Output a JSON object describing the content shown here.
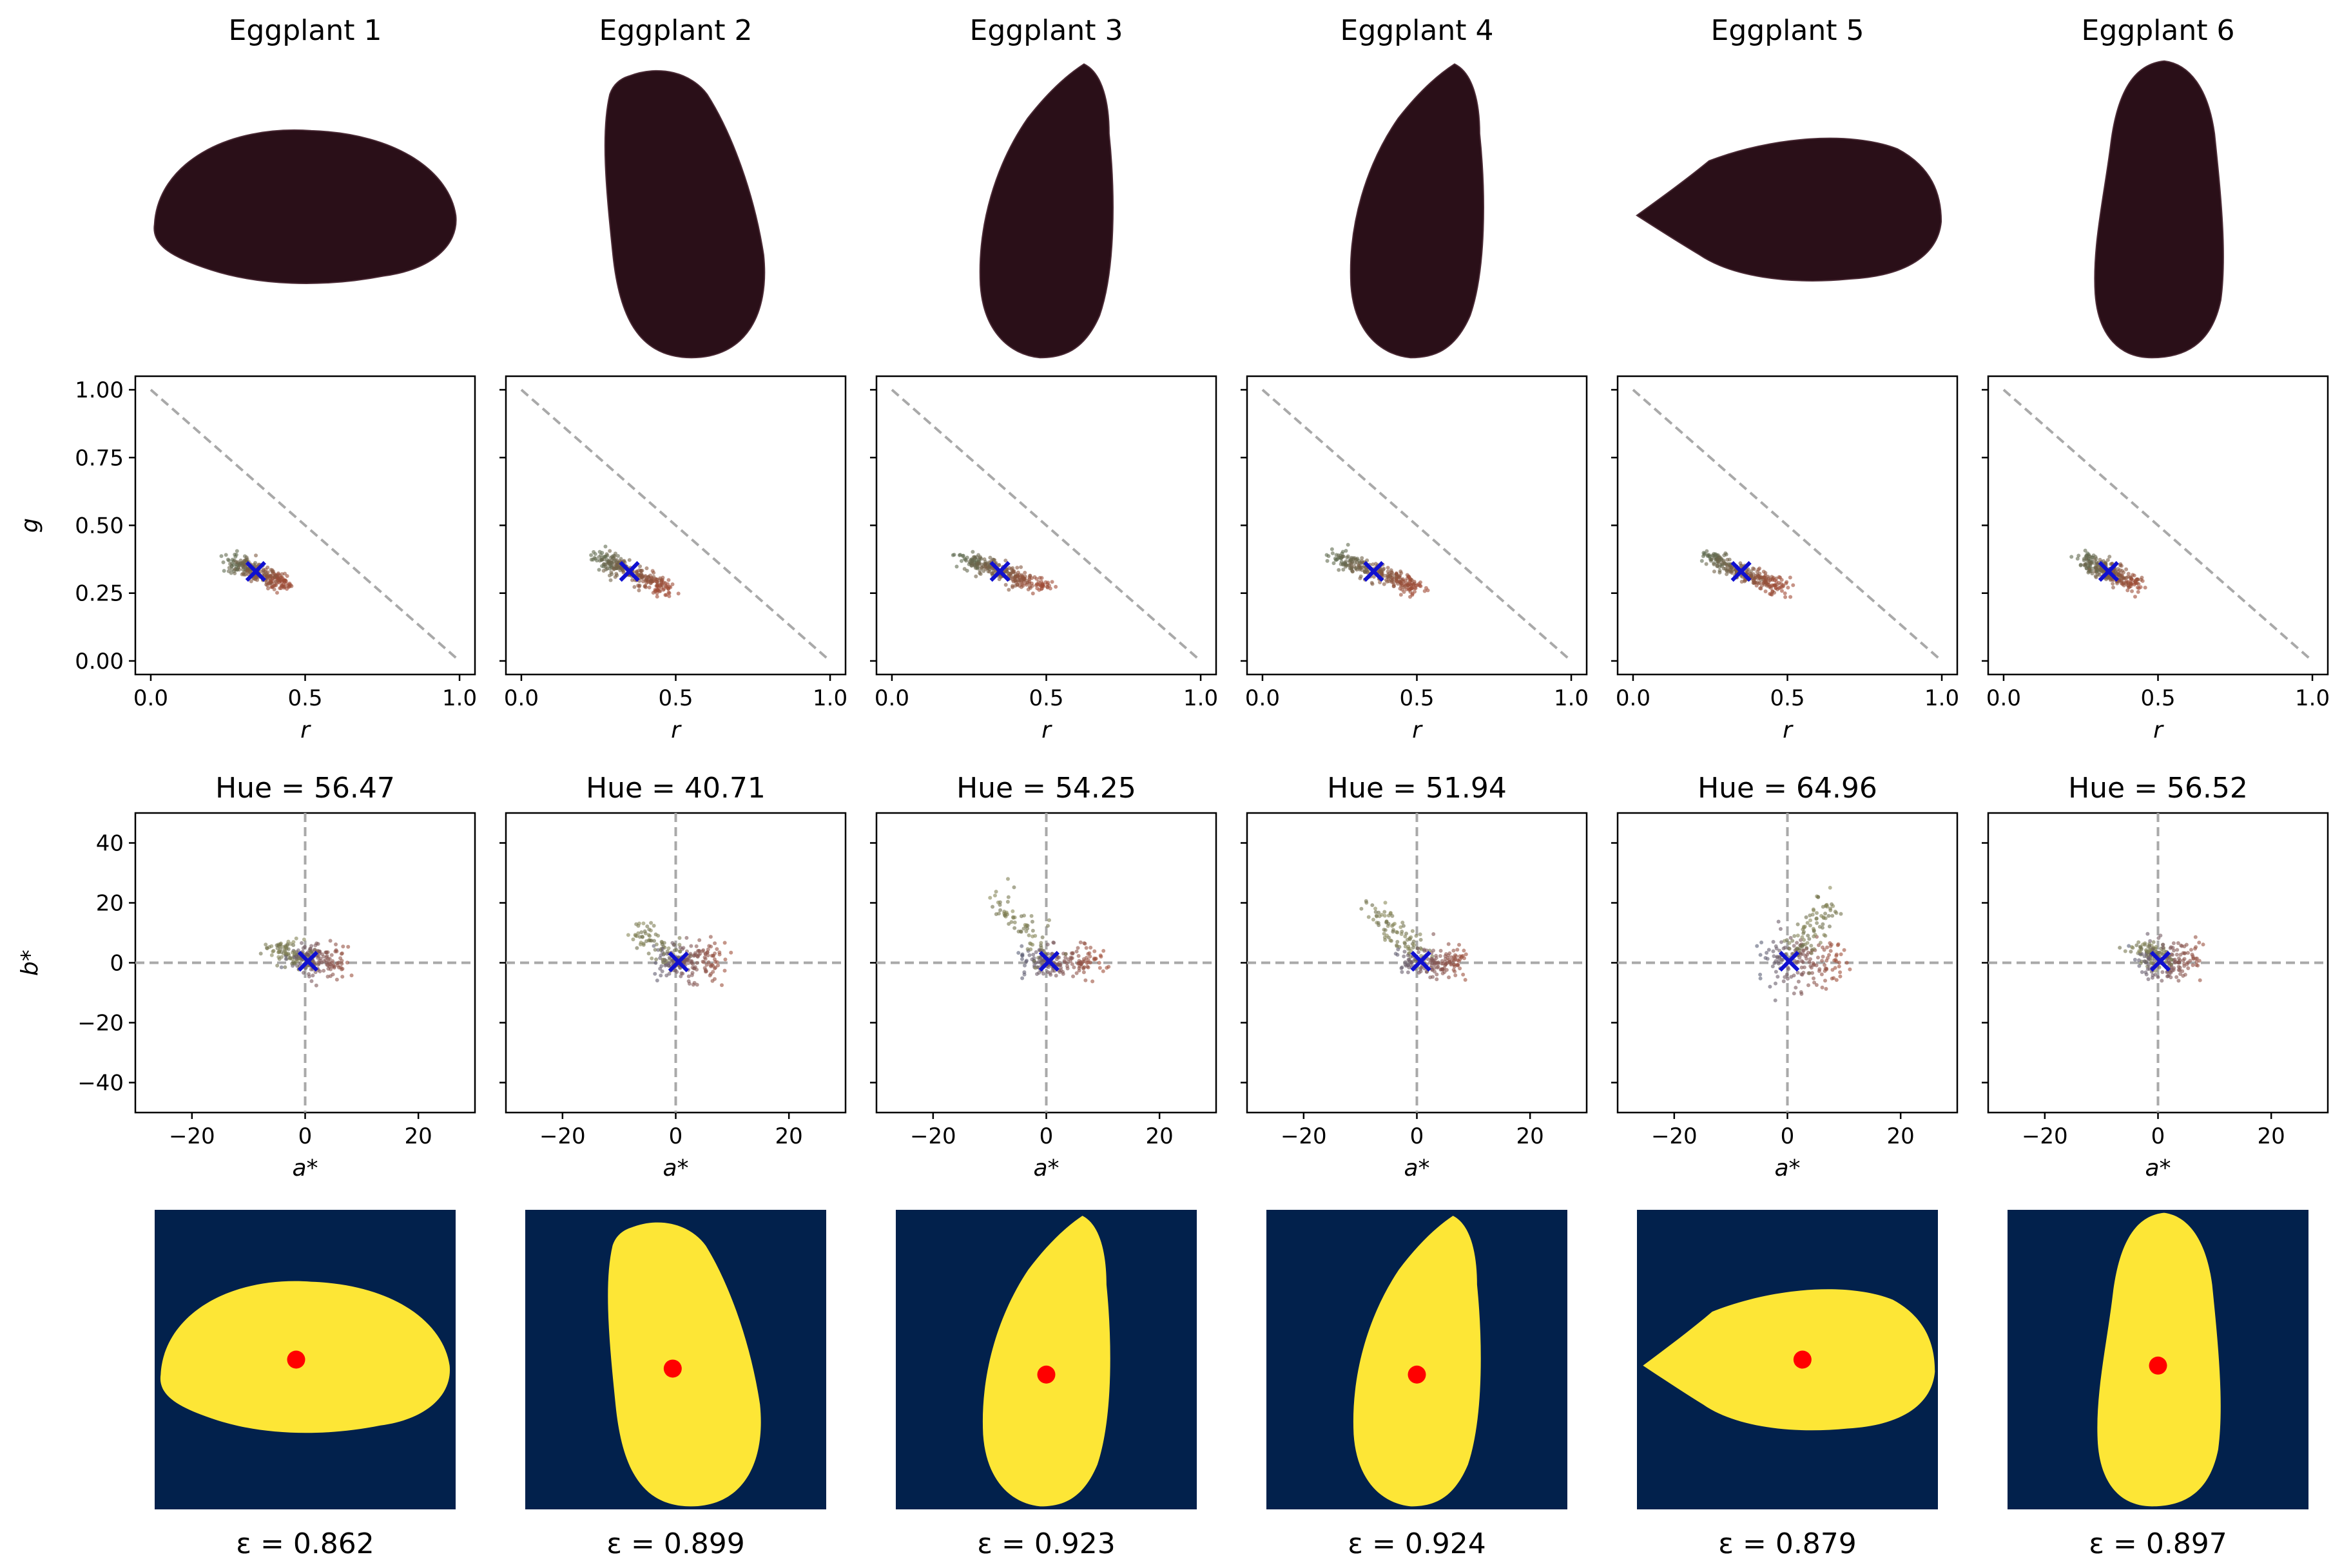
{
  "chart_data": {
    "type": "scatter",
    "columns": [
      {
        "title": "Eggplant 1",
        "hue": "Hue = 56.47",
        "ecc": "ε = 0.862",
        "rg_center": [
          0.34,
          0.33
        ],
        "rg_len": 0.09,
        "rg_slope": -0.85,
        "ab_center": [
          0.5,
          0.5
        ],
        "ab_spread": [
          6,
          4
        ],
        "ab_tail": [
          -5,
          5
        ],
        "shape": "egg-h",
        "shape_centroid": [
          0.47,
          0.5
        ]
      },
      {
        "title": "Eggplant 2",
        "hue": "Hue = 40.71",
        "ecc": "ε = 0.899",
        "rg_center": [
          0.35,
          0.33
        ],
        "rg_len": 0.11,
        "rg_slope": -0.9,
        "ab_center": [
          0.5,
          0.3
        ],
        "ab_spread": [
          7,
          4
        ],
        "ab_tail": [
          -8,
          12
        ],
        "shape": "curved-v",
        "shape_centroid": [
          0.49,
          0.53
        ]
      },
      {
        "title": "Eggplant 3",
        "hue": "Hue = 54.25",
        "ecc": "ε = 0.923",
        "rg_center": [
          0.35,
          0.33
        ],
        "rg_len": 0.13,
        "rg_slope": -0.7,
        "ab_center": [
          0.5,
          0.5
        ],
        "ab_spread": [
          9,
          3
        ],
        "ab_tail": [
          -9,
          22
        ],
        "shape": "drop-v",
        "shape_centroid": [
          0.5,
          0.55
        ]
      },
      {
        "title": "Eggplant 4",
        "hue": "Hue = 51.94",
        "ecc": "ε = 0.924",
        "rg_center": [
          0.36,
          0.33
        ],
        "rg_len": 0.13,
        "rg_slope": -0.7,
        "ab_center": [
          0.7,
          0.5
        ],
        "ab_spread": [
          8,
          3
        ],
        "ab_tail": [
          -8,
          18
        ],
        "shape": "drop-v",
        "shape_centroid": [
          0.5,
          0.55
        ]
      },
      {
        "title": "Eggplant 5",
        "hue": "Hue = 64.96",
        "ecc": "ε = 0.879",
        "rg_center": [
          0.35,
          0.33
        ],
        "rg_len": 0.12,
        "rg_slope": -0.8,
        "ab_center": [
          0.3,
          0.5
        ],
        "ab_spread": [
          9,
          6
        ],
        "ab_tail": [
          7,
          20
        ],
        "shape": "egg-h2",
        "shape_centroid": [
          0.55,
          0.5
        ]
      },
      {
        "title": "Eggplant 6",
        "hue": "Hue = 56.52",
        "ecc": "ε = 0.897",
        "rg_center": [
          0.34,
          0.33
        ],
        "rg_len": 0.09,
        "rg_slope": -0.85,
        "ab_center": [
          0.4,
          0.5
        ],
        "ab_spread": [
          6,
          4
        ],
        "ab_tail": [
          -3,
          5
        ],
        "shape": "bottle-v",
        "shape_centroid": [
          0.5,
          0.52
        ]
      }
    ],
    "rg_plot": {
      "xlabel": "r",
      "ylabel": "g",
      "xlim": [
        -0.05,
        1.05
      ],
      "ylim": [
        -0.05,
        1.05
      ],
      "xticks": [
        "0.0",
        "0.5",
        "1.0"
      ],
      "yticks": [
        "0.00",
        "0.25",
        "0.50",
        "0.75",
        "1.00"
      ]
    },
    "ab_plot": {
      "xlabel": "a*",
      "ylabel": "b*",
      "xlim": [
        -30,
        30
      ],
      "ylim": [
        -50,
        50
      ],
      "xticks": [
        "−20",
        "0",
        "20"
      ],
      "yticks": [
        "−40",
        "−20",
        "0",
        "20",
        "40"
      ]
    },
    "colors": {
      "line": "#a9a9a9",
      "centroid_marker": "#1010d0",
      "mask_bg": "#02214c",
      "mask_fg": "#fde636",
      "mask_centroid": "#ff0000",
      "eggplant_body": "#2a0f18",
      "eggplant_cap": "#5a5a3e"
    }
  }
}
